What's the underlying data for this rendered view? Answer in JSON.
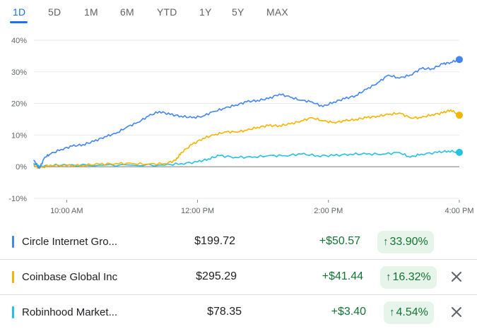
{
  "tabs": [
    {
      "label": "1D",
      "active": true
    },
    {
      "label": "5D",
      "active": false
    },
    {
      "label": "1M",
      "active": false
    },
    {
      "label": "6M",
      "active": false
    },
    {
      "label": "YTD",
      "active": false
    },
    {
      "label": "1Y",
      "active": false
    },
    {
      "label": "5Y",
      "active": false
    },
    {
      "label": "MAX",
      "active": false
    }
  ],
  "colors": {
    "accent": "#1a73e8",
    "gain": "#137333",
    "gain_bg": "#e6f4ea",
    "zero_line": "#80868b",
    "grid": "#e8eaed"
  },
  "chart_data": {
    "type": "line",
    "y_ticks": [
      "40%",
      "30%",
      "20%",
      "10%",
      "0%",
      "-10%"
    ],
    "y_range": [
      -10,
      40
    ],
    "x_ticks": [
      "10:00 AM",
      "12:00 PM",
      "2:00 PM",
      "4:00 PM"
    ],
    "x_range_hours": [
      "9:30 AM",
      "4:00 PM"
    ],
    "series": [
      {
        "name": "Circle Internet Gro...",
        "color": "#4285f4",
        "points": [
          [
            "9:30",
            2.0
          ],
          [
            "9:35",
            -0.5
          ],
          [
            "9:40",
            3.0
          ],
          [
            "9:45",
            4.0
          ],
          [
            "9:55",
            5.5
          ],
          [
            "10:05",
            6.5
          ],
          [
            "10:15",
            7.0
          ],
          [
            "10:25",
            8.0
          ],
          [
            "10:35",
            9.5
          ],
          [
            "10:45",
            10.5
          ],
          [
            "10:55",
            12.5
          ],
          [
            "11:05",
            14.0
          ],
          [
            "11:15",
            16.0
          ],
          [
            "11:25",
            17.5
          ],
          [
            "11:35",
            16.5
          ],
          [
            "11:45",
            16.0
          ],
          [
            "11:55",
            15.5
          ],
          [
            "12:05",
            16.0
          ],
          [
            "12:15",
            17.5
          ],
          [
            "12:25",
            18.5
          ],
          [
            "12:35",
            19.5
          ],
          [
            "12:45",
            20.5
          ],
          [
            "12:55",
            21.0
          ],
          [
            "1:05",
            21.5
          ],
          [
            "1:15",
            23.0
          ],
          [
            "1:25",
            22.0
          ],
          [
            "1:35",
            21.0
          ],
          [
            "1:45",
            20.5
          ],
          [
            "1:55",
            19.0
          ],
          [
            "2:05",
            20.5
          ],
          [
            "2:15",
            21.5
          ],
          [
            "2:25",
            22.5
          ],
          [
            "2:35",
            24.5
          ],
          [
            "2:45",
            26.5
          ],
          [
            "2:55",
            29.0
          ],
          [
            "3:05",
            28.0
          ],
          [
            "3:15",
            29.0
          ],
          [
            "3:25",
            31.0
          ],
          [
            "3:35",
            31.0
          ],
          [
            "3:45",
            32.5
          ],
          [
            "3:52",
            33.0
          ],
          [
            "4:00",
            33.9
          ]
        ]
      },
      {
        "name": "Coinbase Global Inc",
        "color": "#f4b400",
        "points": [
          [
            "9:30",
            0.5
          ],
          [
            "9:35",
            -0.5
          ],
          [
            "9:45",
            0.5
          ],
          [
            "10:00",
            0.3
          ],
          [
            "10:15",
            0.5
          ],
          [
            "10:30",
            0.8
          ],
          [
            "10:45",
            1.0
          ],
          [
            "11:00",
            1.0
          ],
          [
            "11:15",
            0.8
          ],
          [
            "11:30",
            1.0
          ],
          [
            "11:40",
            2.0
          ],
          [
            "11:45",
            4.5
          ],
          [
            "11:55",
            7.0
          ],
          [
            "12:05",
            9.0
          ],
          [
            "12:15",
            10.0
          ],
          [
            "12:25",
            11.0
          ],
          [
            "12:35",
            11.0
          ],
          [
            "12:45",
            11.5
          ],
          [
            "12:55",
            12.5
          ],
          [
            "1:05",
            13.0
          ],
          [
            "1:15",
            13.0
          ],
          [
            "1:25",
            13.5
          ],
          [
            "1:35",
            14.5
          ],
          [
            "1:45",
            15.5
          ],
          [
            "1:55",
            14.5
          ],
          [
            "2:05",
            14.0
          ],
          [
            "2:15",
            14.5
          ],
          [
            "2:25",
            15.0
          ],
          [
            "2:35",
            15.5
          ],
          [
            "2:45",
            16.0
          ],
          [
            "2:55",
            16.5
          ],
          [
            "3:05",
            17.0
          ],
          [
            "3:15",
            15.5
          ],
          [
            "3:25",
            15.5
          ],
          [
            "3:35",
            16.5
          ],
          [
            "3:45",
            17.0
          ],
          [
            "3:52",
            18.0
          ],
          [
            "4:00",
            16.3
          ]
        ]
      },
      {
        "name": "Robinhood Market...",
        "color": "#24c1e0",
        "points": [
          [
            "9:30",
            1.0
          ],
          [
            "9:35",
            0.0
          ],
          [
            "9:45",
            0.5
          ],
          [
            "10:00",
            0.5
          ],
          [
            "10:30",
            0.5
          ],
          [
            "11:00",
            0.5
          ],
          [
            "11:30",
            0.5
          ],
          [
            "11:45",
            1.0
          ],
          [
            "12:00",
            1.5
          ],
          [
            "12:10",
            2.5
          ],
          [
            "12:20",
            3.5
          ],
          [
            "12:35",
            3.0
          ],
          [
            "12:50",
            3.0
          ],
          [
            "1:05",
            3.5
          ],
          [
            "1:20",
            3.5
          ],
          [
            "1:35",
            4.0
          ],
          [
            "1:50",
            3.5
          ],
          [
            "2:05",
            3.5
          ],
          [
            "2:20",
            4.0
          ],
          [
            "2:35",
            4.0
          ],
          [
            "2:50",
            4.0
          ],
          [
            "3:05",
            4.5
          ],
          [
            "3:15",
            3.0
          ],
          [
            "3:25",
            4.0
          ],
          [
            "3:40",
            4.5
          ],
          [
            "3:50",
            5.0
          ],
          [
            "4:00",
            4.54
          ]
        ]
      }
    ]
  },
  "rows": [
    {
      "name": "Circle Internet Gro...",
      "color": "#4285f4",
      "price": "$199.72",
      "change": "+$50.57",
      "percent": "33.90%",
      "removable": false
    },
    {
      "name": "Coinbase Global Inc",
      "color": "#f4b400",
      "price": "$295.29",
      "change": "+$41.44",
      "percent": "16.32%",
      "removable": true
    },
    {
      "name": "Robinhood Market...",
      "color": "#24c1e0",
      "price": "$78.35",
      "change": "+$3.40",
      "percent": "4.54%",
      "removable": true
    }
  ],
  "icons": {
    "arrow": "arrow-up-icon",
    "remove": "close-icon"
  }
}
